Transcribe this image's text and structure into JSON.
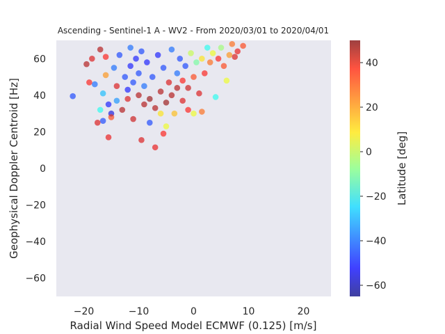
{
  "chart_data": {
    "type": "scatter",
    "title": "Ascending - Sentinel-1 A - WV2 - From 2020/03/01 to 2020/04/01",
    "xlabel": "Radial Wind Speed Model ECMWF (0.125) [m/s]",
    "ylabel": "Geophysical Doppler Centroid [Hz]",
    "xlim": [
      -25,
      25
    ],
    "ylim": [
      -70,
      70
    ],
    "xticks": [
      "−20",
      "−10",
      "0",
      "10",
      "20"
    ],
    "xtick_values": [
      -20,
      -10,
      0,
      10,
      20
    ],
    "yticks": [
      "−60",
      "−40",
      "−20",
      "0",
      "20",
      "40",
      "60"
    ],
    "ytick_values": [
      -60,
      -40,
      -20,
      0,
      20,
      40,
      60
    ],
    "colorbar": {
      "label": "Latitude [deg]",
      "range": [
        -65,
        50
      ],
      "ticks": [
        "−60",
        "−40",
        "−20",
        "0",
        "20",
        "40"
      ],
      "tick_values": [
        -60,
        -40,
        -20,
        0,
        20,
        40
      ],
      "colormap": "jet"
    },
    "grid": false,
    "background": "#e8e8f0",
    "marker_alpha": 0.6,
    "points": [
      {
        "x": -22,
        "y": 39.5,
        "c": -45
      },
      {
        "x": -19.5,
        "y": 57,
        "c": 45
      },
      {
        "x": -19,
        "y": 47,
        "c": 35
      },
      {
        "x": -18.5,
        "y": 60,
        "c": 40
      },
      {
        "x": -18,
        "y": 46,
        "c": -40
      },
      {
        "x": -17.5,
        "y": 25,
        "c": 40
      },
      {
        "x": -17,
        "y": 65,
        "c": 45
      },
      {
        "x": -17,
        "y": 32,
        "c": -20
      },
      {
        "x": -16.5,
        "y": 26,
        "c": -45
      },
      {
        "x": -16.5,
        "y": 41,
        "c": -30
      },
      {
        "x": -16,
        "y": 51,
        "c": 20
      },
      {
        "x": -16,
        "y": 61,
        "c": 35
      },
      {
        "x": -15.5,
        "y": 17,
        "c": 38
      },
      {
        "x": -15.5,
        "y": 35,
        "c": -50
      },
      {
        "x": -15,
        "y": 30,
        "c": -55
      },
      {
        "x": -15,
        "y": 28,
        "c": 30
      },
      {
        "x": -14.5,
        "y": 55,
        "c": -40
      },
      {
        "x": -14,
        "y": 45,
        "c": 40
      },
      {
        "x": -14,
        "y": 37,
        "c": -35
      },
      {
        "x": -13.5,
        "y": 62,
        "c": -45
      },
      {
        "x": -13,
        "y": 32,
        "c": 45
      },
      {
        "x": -12.5,
        "y": 50,
        "c": -45
      },
      {
        "x": -12,
        "y": 43,
        "c": -50
      },
      {
        "x": -12,
        "y": 38,
        "c": 40
      },
      {
        "x": -11.5,
        "y": 66,
        "c": -40
      },
      {
        "x": -11.5,
        "y": 56,
        "c": -50
      },
      {
        "x": -11,
        "y": 27,
        "c": 42
      },
      {
        "x": -11,
        "y": 47,
        "c": -45
      },
      {
        "x": -10.5,
        "y": 60,
        "c": -50
      },
      {
        "x": -10,
        "y": 40,
        "c": 45
      },
      {
        "x": -10,
        "y": 52,
        "c": -45
      },
      {
        "x": -9.5,
        "y": 15.5,
        "c": 40
      },
      {
        "x": -9.5,
        "y": 64,
        "c": -45
      },
      {
        "x": -9,
        "y": 35,
        "c": 45
      },
      {
        "x": -9,
        "y": 45,
        "c": -40
      },
      {
        "x": -8.5,
        "y": 58,
        "c": -50
      },
      {
        "x": -8,
        "y": 25,
        "c": -45
      },
      {
        "x": -8,
        "y": 38,
        "c": 48
      },
      {
        "x": -7.5,
        "y": 50,
        "c": -45
      },
      {
        "x": -7,
        "y": 11.5,
        "c": 38
      },
      {
        "x": -7,
        "y": 33,
        "c": 45
      },
      {
        "x": -6.5,
        "y": 62,
        "c": -50
      },
      {
        "x": -6,
        "y": 42,
        "c": 45
      },
      {
        "x": -6,
        "y": 30,
        "c": 10
      },
      {
        "x": -5.5,
        "y": 19,
        "c": 35
      },
      {
        "x": -5.5,
        "y": 55,
        "c": -45
      },
      {
        "x": -5,
        "y": 23,
        "c": 5
      },
      {
        "x": -5,
        "y": 36,
        "c": 48
      },
      {
        "x": -4.5,
        "y": 47,
        "c": 40
      },
      {
        "x": -4,
        "y": 65,
        "c": -40
      },
      {
        "x": -4,
        "y": 40,
        "c": 45
      },
      {
        "x": -3.5,
        "y": 30,
        "c": 15
      },
      {
        "x": -3,
        "y": 52,
        "c": -40
      },
      {
        "x": -3,
        "y": 44,
        "c": 45
      },
      {
        "x": -2.5,
        "y": 60,
        "c": -45
      },
      {
        "x": -2,
        "y": 37,
        "c": 40
      },
      {
        "x": -2,
        "y": 48,
        "c": 35
      },
      {
        "x": -1.5,
        "y": 56,
        "c": -45
      },
      {
        "x": -1,
        "y": 32,
        "c": 35
      },
      {
        "x": -1,
        "y": 44,
        "c": 42
      },
      {
        "x": -0.5,
        "y": 63,
        "c": 0
      },
      {
        "x": 0,
        "y": 30,
        "c": 5
      },
      {
        "x": 0,
        "y": 50,
        "c": 30
      },
      {
        "x": 0.5,
        "y": 58,
        "c": -10
      },
      {
        "x": 1,
        "y": 41,
        "c": 40
      },
      {
        "x": 1.5,
        "y": 31,
        "c": 25
      },
      {
        "x": 1.5,
        "y": 60,
        "c": 10
      },
      {
        "x": 2,
        "y": 52,
        "c": 35
      },
      {
        "x": 2.5,
        "y": 66,
        "c": -20
      },
      {
        "x": 3,
        "y": 58,
        "c": 25
      },
      {
        "x": 3.5,
        "y": 63,
        "c": 5
      },
      {
        "x": 4,
        "y": 39,
        "c": -20
      },
      {
        "x": 4.5,
        "y": 60,
        "c": 35
      },
      {
        "x": 5,
        "y": 66,
        "c": -5
      },
      {
        "x": 5.5,
        "y": 56,
        "c": 30
      },
      {
        "x": 6,
        "y": 48,
        "c": 5
      },
      {
        "x": 6.5,
        "y": 62,
        "c": 20
      },
      {
        "x": 7,
        "y": 68,
        "c": 25
      },
      {
        "x": 7.5,
        "y": 61,
        "c": 40
      },
      {
        "x": 8,
        "y": 64,
        "c": 38
      },
      {
        "x": 9,
        "y": 67,
        "c": 30
      }
    ]
  }
}
